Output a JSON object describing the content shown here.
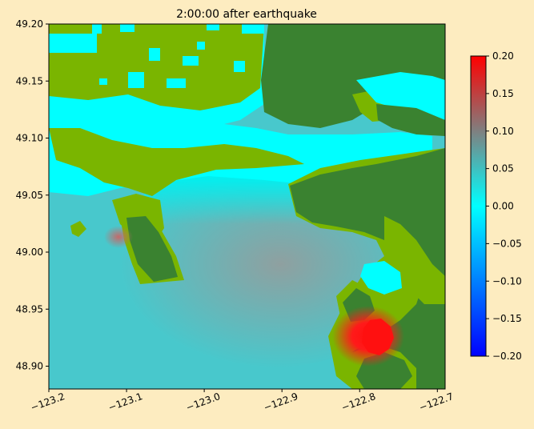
{
  "chart_data": {
    "type": "heatmap",
    "title": "2:00:00 after earthquake",
    "xlabel": "",
    "ylabel": "",
    "xlim": [
      -123.2,
      -122.69
    ],
    "ylim": [
      48.88,
      49.2
    ],
    "x_ticks": [
      -123.2,
      -123.1,
      -123.0,
      -122.9,
      -122.8,
      -122.7
    ],
    "x_tick_labels": [
      "−123.2",
      "−123.1",
      "−123.0",
      "−122.9",
      "−122.8",
      "−122.7"
    ],
    "y_ticks": [
      48.9,
      48.95,
      49.0,
      49.05,
      49.1,
      49.15,
      49.2
    ],
    "y_tick_labels": [
      "48.90",
      "48.95",
      "49.00",
      "49.05",
      "49.10",
      "49.15",
      "49.20"
    ],
    "colorbar": {
      "range": [
        -0.2,
        0.2
      ],
      "ticks": [
        -0.2,
        -0.15,
        -0.1,
        -0.05,
        0.0,
        0.05,
        0.1,
        0.15,
        0.2
      ],
      "tick_labels": [
        "−0.20",
        "−0.15",
        "−0.10",
        "−0.05",
        "0.00",
        "0.05",
        "0.10",
        "0.15",
        "0.20"
      ],
      "colors": [
        "#0000ff",
        "#00ffff",
        "#ff0000"
      ]
    },
    "colors": {
      "land_dark": "#3a8230",
      "land_light": "#7ab500",
      "dry_cyan": "#00ffff",
      "water": "#48c8cc",
      "peak": "#ff1010"
    },
    "peak": {
      "lon": -122.765,
      "lat": 48.925,
      "value": 0.2
    }
  }
}
